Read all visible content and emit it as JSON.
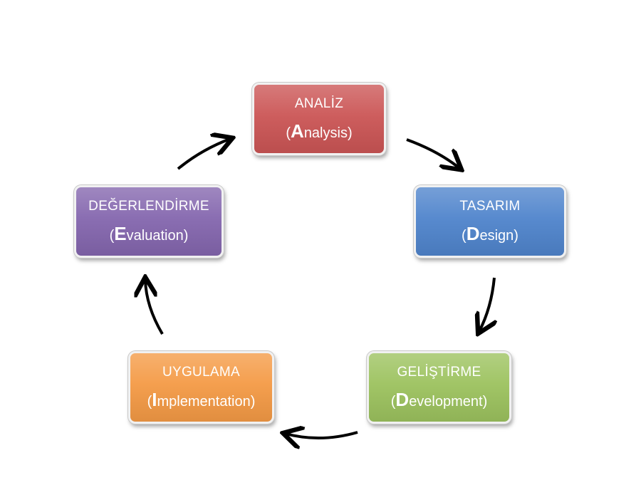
{
  "diagram": {
    "nodes": [
      {
        "id": "analysis",
        "title": "ANALİZ",
        "open": "(",
        "initial": "A",
        "rest": "nalysis",
        "close": ")",
        "color": "#cb5555"
      },
      {
        "id": "design",
        "title": "TASARIM",
        "open": "(",
        "initial": "D",
        "rest": "esign",
        "close": ")",
        "color": "#4f84cc"
      },
      {
        "id": "development",
        "title": "GELİŞTİRME",
        "open": "(",
        "initial": "D",
        "rest": "evelopment",
        "close": ")",
        "color": "#9cc25e"
      },
      {
        "id": "implementation",
        "title": "UYGULAMA",
        "open": "(",
        "initial": "I",
        "rest": "mplementation",
        "close": ")",
        "color": "#f49a45"
      },
      {
        "id": "evaluation",
        "title": "DEĞERLENDİRME",
        "open": "(",
        "initial": "E",
        "rest": "valuation",
        "close": ")",
        "color": "#8466ae"
      }
    ],
    "arrow_color": "#000000"
  }
}
